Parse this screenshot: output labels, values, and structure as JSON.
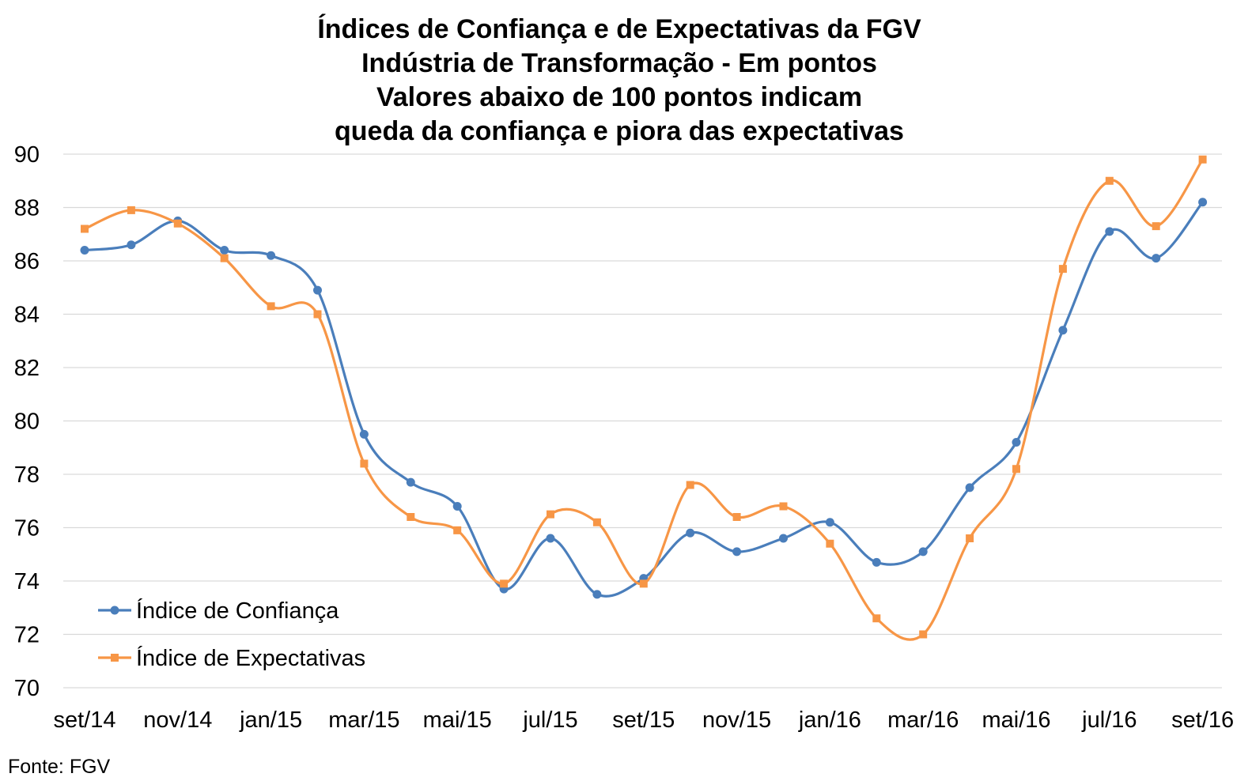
{
  "chart_data": {
    "type": "line",
    "title_lines": [
      "Índices de Confiança e de Expectativas da FGV",
      "Indústria de Transformação - Em pontos",
      "Valores abaixo de 100 pontos indicam",
      "queda da confiança e piora das expectativas"
    ],
    "ylim": [
      70,
      90
    ],
    "yticks": [
      70,
      72,
      74,
      76,
      78,
      80,
      82,
      84,
      86,
      88,
      90
    ],
    "x_tick_labels": [
      "set/14",
      "nov/14",
      "jan/15",
      "mar/15",
      "mai/15",
      "jul/15",
      "set/15",
      "nov/15",
      "jan/16",
      "mar/16",
      "mai/16",
      "jul/16",
      "set/16"
    ],
    "categories": [
      "set/14",
      "out/14",
      "nov/14",
      "dez/14",
      "jan/15",
      "fev/15",
      "mar/15",
      "abr/15",
      "mai/15",
      "jun/15",
      "jul/15",
      "ago/15",
      "set/15",
      "out/15",
      "nov/15",
      "dez/15",
      "jan/16",
      "fev/16",
      "mar/16",
      "abr/16",
      "mai/16",
      "jun/16",
      "jul/16",
      "ago/16",
      "set/16"
    ],
    "grid": true,
    "legend_position": "bottom-left",
    "series": [
      {
        "name": "Índice de Confiança",
        "color": "#4a7ebb",
        "marker": "circle",
        "values": [
          86.4,
          86.6,
          87.5,
          86.4,
          86.2,
          84.9,
          79.5,
          77.7,
          76.8,
          73.7,
          75.6,
          73.5,
          74.1,
          75.8,
          75.1,
          75.6,
          76.2,
          74.7,
          75.1,
          77.5,
          79.2,
          83.4,
          87.1,
          86.1,
          88.2
        ]
      },
      {
        "name": "Índice de Expectativas",
        "color": "#f79646",
        "marker": "square",
        "values": [
          87.2,
          87.9,
          87.4,
          86.1,
          84.3,
          84.0,
          78.4,
          76.4,
          75.9,
          73.9,
          76.5,
          76.2,
          73.9,
          77.6,
          76.4,
          76.8,
          75.4,
          72.6,
          72.0,
          75.6,
          78.2,
          85.7,
          89.0,
          87.3,
          89.8
        ]
      }
    ]
  },
  "source": "Fonte: FGV"
}
